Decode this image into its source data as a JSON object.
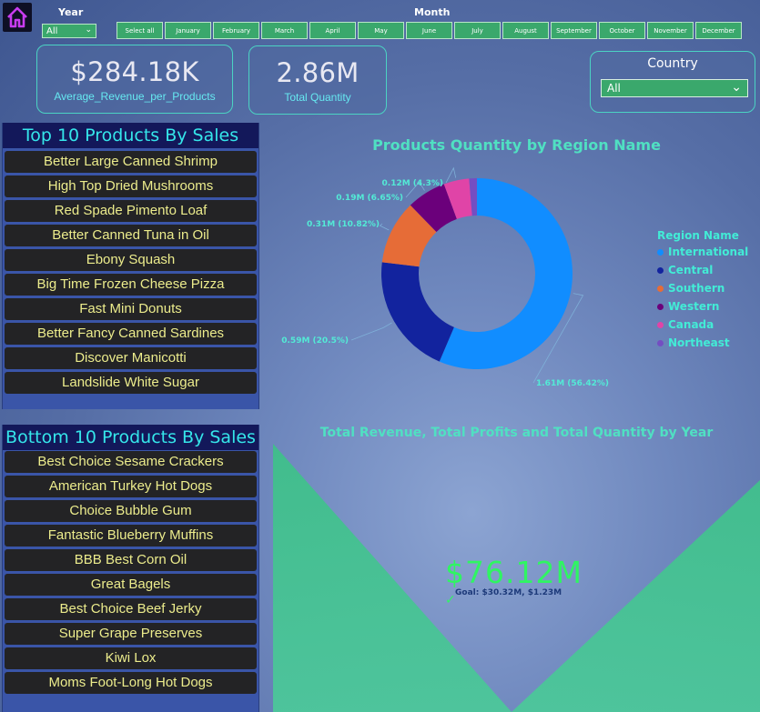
{
  "filters": {
    "year_label": "Year",
    "year_value": "All",
    "month_label": "Month",
    "months": [
      "Select all",
      "January",
      "February",
      "March",
      "April",
      "May",
      "June",
      "July",
      "August",
      "September",
      "October",
      "November",
      "December"
    ]
  },
  "kpis": {
    "avg_revenue_value": "$284.18K",
    "avg_revenue_label": "Average_Revenue_per_Products",
    "total_quantity_value": "2.86M",
    "total_quantity_label": "Total Quantity"
  },
  "country": {
    "title": "Country",
    "value": "All"
  },
  "top_products": {
    "title": "Top 10 Products By Sales",
    "items": [
      "Better Large Canned Shrimp",
      "High Top Dried Mushrooms",
      "Red Spade Pimento Loaf",
      "Better Canned Tuna in Oil",
      "Ebony Squash",
      "Big Time Frozen Cheese Pizza",
      "Fast Mini Donuts",
      "Better Fancy Canned Sardines",
      "Discover Manicotti",
      "Landslide White Sugar"
    ]
  },
  "bottom_products": {
    "title": "Bottom 10 Products By Sales",
    "items": [
      "Best Choice Sesame Crackers",
      "American Turkey Hot Dogs",
      "Choice Bubble Gum",
      "Fantastic Blueberry Muffins",
      "BBB Best Corn Oil",
      "Great Bagels",
      "Best Choice Beef Jerky",
      "Super Grape Preserves",
      "Kiwi Lox",
      "Moms Foot-Long Hot Dogs"
    ]
  },
  "chart_data": [
    {
      "type": "pie",
      "title": "Products Quantity by Region Name",
      "legend_title": "Region Name",
      "categories": [
        "International",
        "Central",
        "Southern",
        "Western",
        "Canada",
        "Northeast"
      ],
      "values": [
        1.61,
        0.59,
        0.31,
        0.19,
        0.12,
        0.04
      ],
      "percents": [
        56.42,
        20.5,
        10.82,
        6.65,
        4.3,
        1.31
      ],
      "labels": [
        "1.61M (56.42%)",
        "0.59M (20.5%)",
        "0.31M (10.82%)",
        "0.19M (6.65%)",
        "0.12M (4.3%)",
        ""
      ],
      "colors": [
        "#118dff",
        "#12239e",
        "#e66c37",
        "#6b007b",
        "#e044a7",
        "#744ec2"
      ],
      "legend_position": "right"
    },
    {
      "type": "kpi",
      "title": "Total Revenue, Total Profits and Total Quantity by Year",
      "value": "$76.12M",
      "goal_text": "Goal: $30.32M, $1.23M"
    }
  ]
}
